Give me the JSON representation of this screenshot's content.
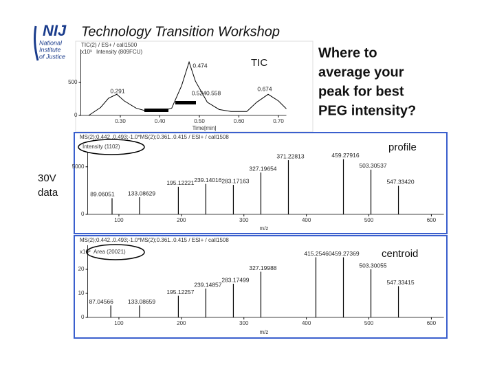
{
  "logo": {
    "mark": "NIJ",
    "lines": [
      "National",
      "Institute",
      "of Justice"
    ]
  },
  "title": "Technology Transition Workshop",
  "question": [
    "Where to",
    "average your",
    "peak for best",
    "PEG intensity?"
  ],
  "side_label": [
    "30V",
    "data"
  ],
  "tic": {
    "label": "TIC",
    "header": [
      "TIC(2) / ES+ / call1500",
      "x10³",
      "Intensity (809FCU)"
    ],
    "xlabel": "Time[min]",
    "xlim": [
      0.2,
      0.72
    ],
    "ylim": [
      0,
      1000
    ],
    "xticks": [
      {
        "value": 0.3,
        "label": "0.30"
      },
      {
        "value": 0.4,
        "label": "0.40"
      },
      {
        "value": 0.5,
        "label": "0.50"
      },
      {
        "value": 0.6,
        "label": "0.60"
      },
      {
        "value": 0.7,
        "label": "0.70"
      }
    ],
    "yticks": [
      0,
      500
    ],
    "time": [
      0.22,
      0.25,
      0.27,
      0.291,
      0.31,
      0.34,
      0.37,
      0.4,
      0.43,
      0.455,
      0.474,
      0.49,
      0.52,
      0.55,
      0.58,
      0.62,
      0.645,
      0.674,
      0.7,
      0.72
    ],
    "intensity": [
      0,
      120,
      260,
      320,
      220,
      110,
      60,
      60,
      110,
      450,
      810,
      520,
      200,
      90,
      60,
      60,
      200,
      320,
      220,
      100
    ],
    "peak_labels": [
      "0.291",
      "0.474",
      "0.5240.558",
      "0.674"
    ]
  },
  "profile": {
    "label": "profile",
    "header": [
      "MS(2);0.442..0.493;-1.0*MS(2);0.361..0.415 / ESI+ / call1508",
      "Intensity (1102)"
    ],
    "xlabel": "m/z",
    "xlim": [
      50,
      620
    ],
    "ylim": [
      0,
      6500
    ],
    "xticks": [
      100,
      200,
      300,
      400,
      500,
      600
    ],
    "yticks": [
      0,
      5000
    ],
    "peaks": [
      {
        "mz": 89.06,
        "intensity": 1700,
        "label": "89.06051"
      },
      {
        "mz": 133.09,
        "intensity": 1800,
        "label": "133.08629"
      },
      {
        "mz": 195.12,
        "intensity": 2900,
        "label": "195.12221"
      },
      {
        "mz": 239.14,
        "intensity": 3200,
        "label": "239.14016"
      },
      {
        "mz": 283.17,
        "intensity": 3100,
        "label": "283.17163"
      },
      {
        "mz": 327.2,
        "intensity": 4400,
        "label": "327.19654"
      },
      {
        "mz": 371.23,
        "intensity": 5700,
        "label": "371.22813"
      },
      {
        "mz": 459.28,
        "intensity": 5800,
        "label": "459.27916"
      },
      {
        "mz": 503.31,
        "intensity": 4700,
        "label": "503.30537"
      },
      {
        "mz": 547.33,
        "intensity": 3000,
        "label": "547.33420"
      }
    ]
  },
  "centroid": {
    "label": "centroid",
    "header": [
      "MS(2);0.442..0.493;-1.0*MS(2);0.361..0.415 / ESI+ / call1508",
      "x10³",
      "Area (20021)"
    ],
    "xlabel": "m/z",
    "xlim": [
      50,
      620
    ],
    "ylim": [
      0,
      30
    ],
    "xticks": [
      100,
      200,
      300,
      400,
      500,
      600
    ],
    "yticks": [
      0,
      10,
      20
    ],
    "peaks": [
      {
        "mz": 87.05,
        "intensity": 5,
        "label": "87.04566"
      },
      {
        "mz": 133.09,
        "intensity": 5,
        "label": "133.08659"
      },
      {
        "mz": 195.12,
        "intensity": 9,
        "label": "195.12257"
      },
      {
        "mz": 239.15,
        "intensity": 12,
        "label": "239.14857"
      },
      {
        "mz": 283.17,
        "intensity": 14,
        "label": "283.17499"
      },
      {
        "mz": 327.2,
        "intensity": 19,
        "label": "327.19988"
      },
      {
        "mz": 415.25,
        "intensity": 25,
        "label": "415.25460"
      },
      {
        "mz": 459.27,
        "intensity": 25,
        "label": "459.27369"
      },
      {
        "mz": 503.3,
        "intensity": 20,
        "label": "503.30055"
      },
      {
        "mz": 547.33,
        "intensity": 13,
        "label": "547.33415"
      }
    ]
  }
}
